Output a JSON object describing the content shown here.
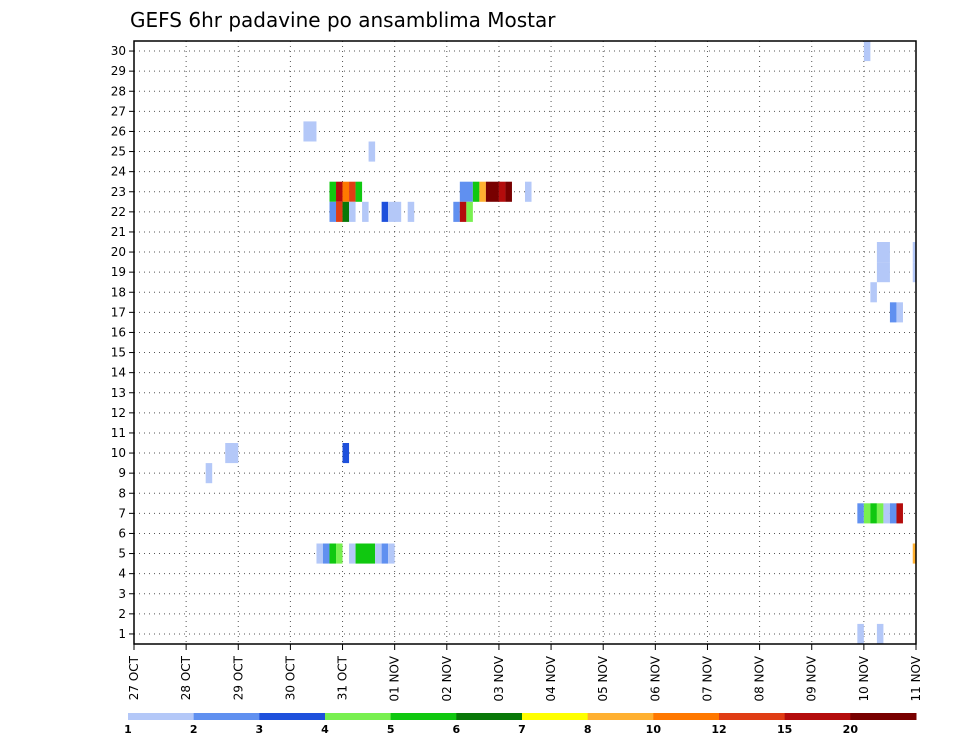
{
  "chart_data": {
    "type": "heatmap",
    "title": "GEFS 6hr padavine po ansamblima Mostar",
    "y_ticks": [
      "1",
      "2",
      "3",
      "4",
      "5",
      "6",
      "7",
      "8",
      "9",
      "10",
      "11",
      "12",
      "13",
      "14",
      "15",
      "16",
      "17",
      "18",
      "19",
      "20",
      "21",
      "22",
      "23",
      "24",
      "25",
      "26",
      "27",
      "28",
      "29",
      "30"
    ],
    "x_ticks": [
      "27 OCT",
      "28 OCT",
      "29 OCT",
      "30 OCT",
      "31 OCT",
      "01 NOV",
      "02 NOV",
      "03 NOV",
      "04 NOV",
      "05 NOV",
      "06 NOV",
      "07 NOV",
      "08 NOV",
      "09 NOV",
      "10 NOV",
      "11 NOV"
    ],
    "xlim": [
      0,
      60
    ],
    "ylim": [
      0.5,
      30.5
    ],
    "grid": true,
    "legend": {
      "placement": "bottom",
      "colors": [
        "#b4c8f8",
        "#6090f0",
        "#1e50dc",
        "#78f050",
        "#10c810",
        "#087808",
        "#ffff00",
        "#ffb030",
        "#ff7800",
        "#e03c14",
        "#b40c0c",
        "#780000"
      ],
      "labels": [
        "1",
        "2",
        "3",
        "4",
        "5",
        "6",
        "7",
        "8",
        "10",
        "12",
        "15",
        "20"
      ]
    },
    "cells": [
      {
        "member": 30,
        "start": 56,
        "span": 0.5,
        "color": "#b4c8f8"
      },
      {
        "member": 26,
        "start": 13,
        "span": 1,
        "color": "#b4c8f8"
      },
      {
        "member": 25,
        "start": 18,
        "span": 0.5,
        "color": "#b4c8f8"
      },
      {
        "member": 23,
        "start": 15,
        "span": 0.5,
        "color": "#10c810"
      },
      {
        "member": 23,
        "start": 15.5,
        "span": 0.5,
        "color": "#b40c0c"
      },
      {
        "member": 23,
        "start": 16,
        "span": 0.5,
        "color": "#ff7800"
      },
      {
        "member": 23,
        "start": 16.5,
        "span": 0.5,
        "color": "#e03c14"
      },
      {
        "member": 23,
        "start": 17,
        "span": 0.5,
        "color": "#10c810"
      },
      {
        "member": 23,
        "start": 25,
        "span": 1,
        "color": "#6090f0"
      },
      {
        "member": 23,
        "start": 26,
        "span": 0.5,
        "color": "#10c810"
      },
      {
        "member": 23,
        "start": 26.5,
        "span": 0.5,
        "color": "#ffb030"
      },
      {
        "member": 23,
        "start": 27,
        "span": 1,
        "color": "#780000"
      },
      {
        "member": 23,
        "start": 28,
        "span": 0.5,
        "color": "#b40c0c"
      },
      {
        "member": 23,
        "start": 28.5,
        "span": 0.5,
        "color": "#780000"
      },
      {
        "member": 23,
        "start": 30,
        "span": 0.5,
        "color": "#b4c8f8"
      },
      {
        "member": 22,
        "start": 15,
        "span": 0.5,
        "color": "#6090f0"
      },
      {
        "member": 22,
        "start": 15.5,
        "span": 0.5,
        "color": "#e03c14"
      },
      {
        "member": 22,
        "start": 16,
        "span": 0.5,
        "color": "#087808"
      },
      {
        "member": 22,
        "start": 16.5,
        "span": 0.5,
        "color": "#b4c8f8"
      },
      {
        "member": 22,
        "start": 17.5,
        "span": 0.5,
        "color": "#b4c8f8"
      },
      {
        "member": 22,
        "start": 19,
        "span": 0.5,
        "color": "#1e50dc"
      },
      {
        "member": 22,
        "start": 19.5,
        "span": 1,
        "color": "#b4c8f8"
      },
      {
        "member": 22,
        "start": 21,
        "span": 0.5,
        "color": "#b4c8f8"
      },
      {
        "member": 22,
        "start": 24.5,
        "span": 0.5,
        "color": "#6090f0"
      },
      {
        "member": 22,
        "start": 25,
        "span": 0.5,
        "color": "#b40c0c"
      },
      {
        "member": 22,
        "start": 25.5,
        "span": 0.5,
        "color": "#78f050"
      },
      {
        "member": 20,
        "start": 57,
        "span": 1,
        "color": "#b4c8f8"
      },
      {
        "member": 20,
        "start": 59.75,
        "span": 0.25,
        "color": "#b4c8f8"
      },
      {
        "member": 19,
        "start": 57,
        "span": 1,
        "color": "#b4c8f8"
      },
      {
        "member": 19,
        "start": 59.75,
        "span": 0.25,
        "color": "#b4c8f8"
      },
      {
        "member": 18,
        "start": 56.5,
        "span": 0.5,
        "color": "#b4c8f8"
      },
      {
        "member": 17,
        "start": 58,
        "span": 0.5,
        "color": "#6090f0"
      },
      {
        "member": 17,
        "start": 58.5,
        "span": 0.5,
        "color": "#b4c8f8"
      },
      {
        "member": 10,
        "start": 16,
        "span": 0.5,
        "color": "#1e50dc"
      },
      {
        "member": 10,
        "start": 7,
        "span": 1,
        "color": "#b4c8f8"
      },
      {
        "member": 9,
        "start": 5.5,
        "span": 0.5,
        "color": "#b4c8f8"
      },
      {
        "member": 7,
        "start": 55.5,
        "span": 0.5,
        "color": "#6090f0"
      },
      {
        "member": 7,
        "start": 56,
        "span": 0.5,
        "color": "#78f050"
      },
      {
        "member": 7,
        "start": 56.5,
        "span": 0.5,
        "color": "#10c810"
      },
      {
        "member": 7,
        "start": 57,
        "span": 0.5,
        "color": "#78f050"
      },
      {
        "member": 7,
        "start": 57.5,
        "span": 0.5,
        "color": "#b4c8f8"
      },
      {
        "member": 7,
        "start": 58,
        "span": 0.5,
        "color": "#6090f0"
      },
      {
        "member": 7,
        "start": 58.5,
        "span": 0.5,
        "color": "#b40c0c"
      },
      {
        "member": 5,
        "start": 14,
        "span": 0.5,
        "color": "#b4c8f8"
      },
      {
        "member": 5,
        "start": 14.5,
        "span": 0.5,
        "color": "#6090f0"
      },
      {
        "member": 5,
        "start": 15,
        "span": 0.5,
        "color": "#10c810"
      },
      {
        "member": 5,
        "start": 15.5,
        "span": 0.5,
        "color": "#78f050"
      },
      {
        "member": 5,
        "start": 16.5,
        "span": 0.5,
        "color": "#b4c8f8"
      },
      {
        "member": 5,
        "start": 17,
        "span": 1.5,
        "color": "#10c810"
      },
      {
        "member": 5,
        "start": 18.5,
        "span": 0.5,
        "color": "#b4c8f8"
      },
      {
        "member": 5,
        "start": 19,
        "span": 0.5,
        "color": "#6090f0"
      },
      {
        "member": 5,
        "start": 19.5,
        "span": 0.5,
        "color": "#b4c8f8"
      },
      {
        "member": 5,
        "start": 59.75,
        "span": 0.25,
        "color": "#ffb030"
      },
      {
        "member": 1,
        "start": 55.5,
        "span": 0.5,
        "color": "#b4c8f8"
      },
      {
        "member": 1,
        "start": 57,
        "span": 0.5,
        "color": "#b4c8f8"
      }
    ]
  }
}
